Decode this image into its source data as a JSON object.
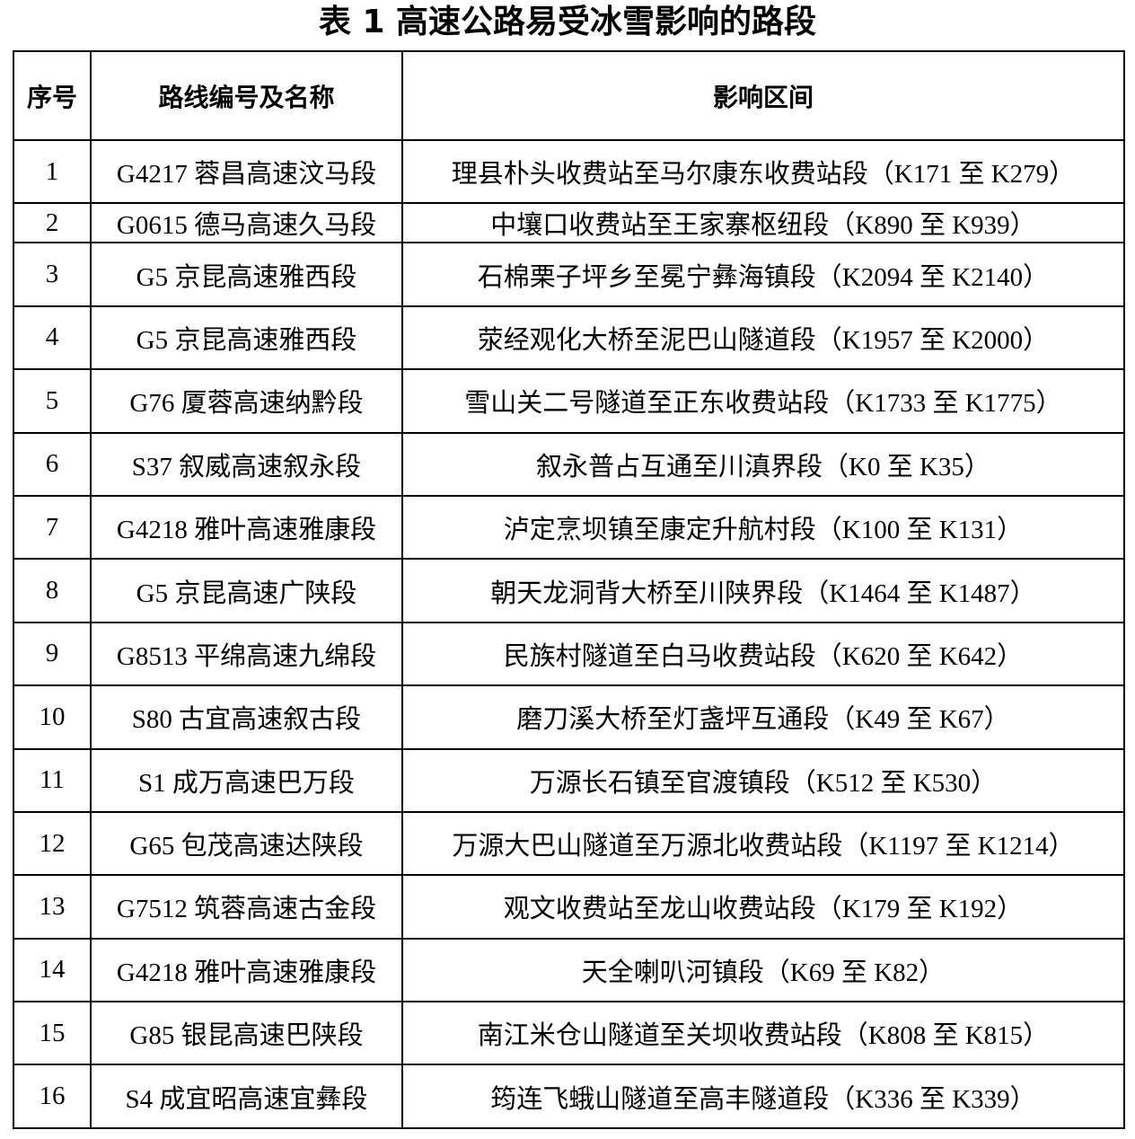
{
  "title": "表 1  高速公路易受冰雪影响的路段",
  "table": {
    "header": [
      "序号",
      "路线编号及名称",
      "影响区间"
    ],
    "rows": [
      [
        "1",
        "G4217 蓉昌高速汶马段",
        "理县朴头收费站至马尔康东收费站段（K171 至 K279）"
      ],
      [
        "2",
        "G0615 德马高速久马段",
        "中壤口收费站至王家寨枢纽段（K890 至 K939）"
      ],
      [
        "3",
        "G5 京昆高速雅西段",
        "石棉栗子坪乡至冕宁彝海镇段（K2094 至 K2140）"
      ],
      [
        "4",
        "G5 京昆高速雅西段",
        "荥经观化大桥至泥巴山隧道段（K1957 至 K2000）"
      ],
      [
        "5",
        "G76 厦蓉高速纳黔段",
        "雪山关二号隧道至正东收费站段（K1733 至 K1775）"
      ],
      [
        "6",
        "S37 叙威高速叙永段",
        "叙永普占互通至川滇界段（K0 至 K35）"
      ],
      [
        "7",
        "G4218 雅叶高速雅康段",
        "泸定烹坝镇至康定升航村段（K100 至 K131）"
      ],
      [
        "8",
        "G5 京昆高速广陕段",
        "朝天龙洞背大桥至川陕界段（K1464 至 K1487）"
      ],
      [
        "9",
        "G8513 平绵高速九绵段",
        "民族村隧道至白马收费站段（K620 至 K642）"
      ],
      [
        "10",
        "S80 古宜高速叙古段",
        "磨刀溪大桥至灯盏坪互通段（K49 至 K67）"
      ],
      [
        "11",
        "S1 成万高速巴万段",
        "万源长石镇至官渡镇段（K512 至 K530）"
      ],
      [
        "12",
        "G65 包茂高速达陕段",
        "万源大巴山隧道至万源北收费站段（K1197 至 K1214）"
      ],
      [
        "13",
        "G7512 筑蓉高速古金段",
        "观文收费站至龙山收费站段（K179 至 K192）"
      ],
      [
        "14",
        "G4218 雅叶高速雅康段",
        "天全喇叭河镇段（K69 至 K82）"
      ],
      [
        "15",
        "G85 银昆高速巴陕段",
        "南江米仓山隧道至关坝收费站段（K808 至 K815）"
      ],
      [
        "16",
        "S4 成宜昭高速宜彝段",
        "筠连飞蛾山隧道至高丰隧道段（K336 至 K339）"
      ]
    ]
  }
}
